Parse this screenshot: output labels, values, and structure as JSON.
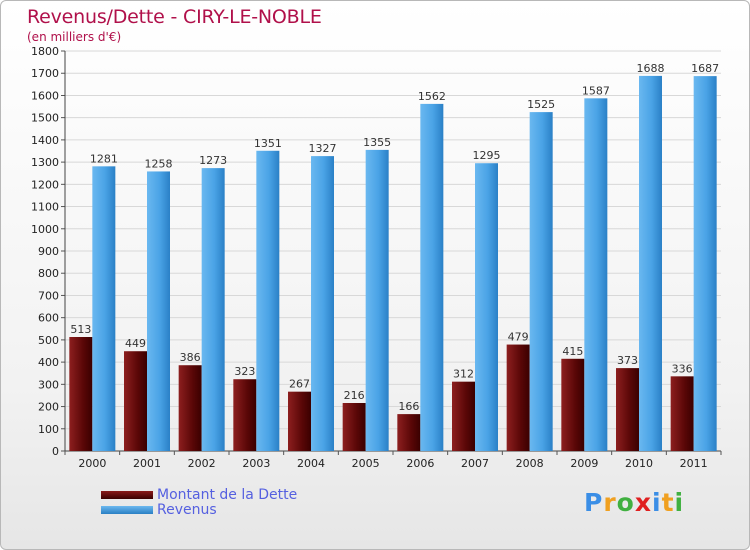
{
  "chart_data": {
    "type": "bar",
    "title": "Revenus/Dette - CIRY-LE-NOBLE",
    "subtitle": "(en milliers d'€)",
    "categories": [
      "2000",
      "2001",
      "2002",
      "2003",
      "2004",
      "2005",
      "2006",
      "2007",
      "2008",
      "2009",
      "2010",
      "2011"
    ],
    "series": [
      {
        "name": "Montant de la Dette",
        "color": "#6b0b0b",
        "values": [
          513,
          449,
          386,
          323,
          267,
          216,
          166,
          312,
          479,
          415,
          373,
          336
        ]
      },
      {
        "name": "Revenus",
        "color": "#3f9ee0",
        "values": [
          1281,
          1258,
          1273,
          1351,
          1327,
          1355,
          1562,
          1295,
          1525,
          1587,
          1688,
          1687
        ]
      }
    ],
    "ylim": [
      0,
      1800
    ],
    "yticks": [
      0,
      100,
      200,
      300,
      400,
      500,
      600,
      700,
      800,
      900,
      1000,
      1100,
      1200,
      1300,
      1400,
      1500,
      1600,
      1700,
      1800
    ],
    "grid": true,
    "legend": "bottom-left"
  },
  "brand": {
    "letters": [
      "P",
      "r",
      "o",
      "x",
      "i",
      "t",
      "i"
    ],
    "colors": [
      "#3a8ee6",
      "#f0a020",
      "#40b040",
      "#e02020",
      "#3a8ee6",
      "#f0a020",
      "#40b040"
    ]
  }
}
